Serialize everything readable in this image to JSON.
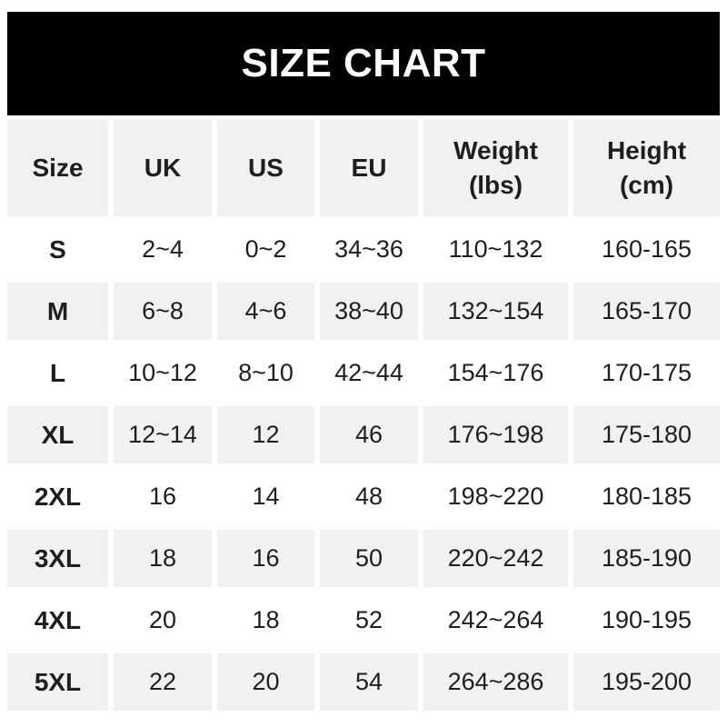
{
  "title": "SIZE CHART",
  "colors": {
    "banner_bg": "#000000",
    "banner_text": "#ffffff",
    "row_alt_bg": "#f1f1f1",
    "row_bg": "#ffffff",
    "text": "#1e1e1e"
  },
  "table": {
    "columns": [
      "Size",
      "UK",
      "US",
      "EU",
      "Weight\n(lbs)",
      "Height\n(cm)"
    ]
  },
  "chart_data": {
    "type": "table",
    "title": "SIZE CHART",
    "columns": [
      "Size",
      "UK",
      "US",
      "EU",
      "Weight (lbs)",
      "Height (cm)"
    ],
    "rows": [
      [
        "S",
        "2~4",
        "0~2",
        "34~36",
        "110~132",
        "160-165"
      ],
      [
        "M",
        "6~8",
        "4~6",
        "38~40",
        "132~154",
        "165-170"
      ],
      [
        "L",
        "10~12",
        "8~10",
        "42~44",
        "154~176",
        "170-175"
      ],
      [
        "XL",
        "12~14",
        "12",
        "46",
        "176~198",
        "175-180"
      ],
      [
        "2XL",
        "16",
        "14",
        "48",
        "198~220",
        "180-185"
      ],
      [
        "3XL",
        "18",
        "16",
        "50",
        "220~242",
        "185-190"
      ],
      [
        "4XL",
        "20",
        "18",
        "52",
        "242~264",
        "190-195"
      ],
      [
        "5XL",
        "22",
        "20",
        "54",
        "264~286",
        "195-200"
      ]
    ]
  }
}
